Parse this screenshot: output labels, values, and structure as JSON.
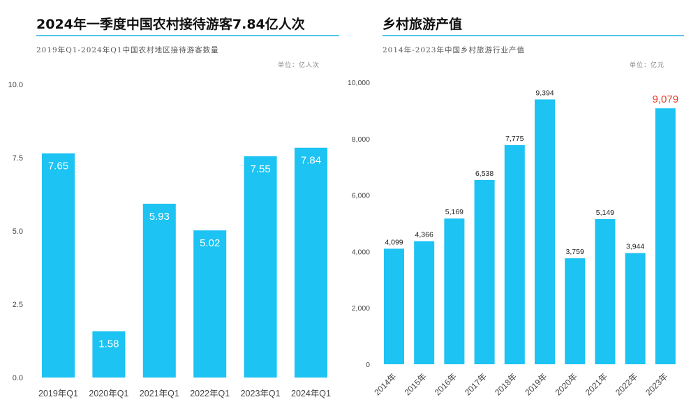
{
  "charts": [
    {
      "title": "2024年一季度中国农村接待游客7.84亿人次",
      "subtitle": "2019年Q1-2024年Q1中国农村地区接待游客数量",
      "unit": "单位：亿人次"
    },
    {
      "title": "乡村旅游产值",
      "subtitle": "2014年-2023年中国乡村旅游行业产值",
      "unit": "单位：亿元"
    }
  ],
  "chart_data": [
    {
      "type": "bar",
      "categories": [
        "2019年Q1",
        "2020年Q1",
        "2021年Q1",
        "2022年Q1",
        "2023年Q1",
        "2024年Q1"
      ],
      "values": [
        7.65,
        1.58,
        5.93,
        5.02,
        7.55,
        7.84
      ],
      "value_labels": [
        "7.65",
        "1.58",
        "5.93",
        "5.02",
        "7.55",
        "7.84"
      ],
      "ylim": [
        0,
        10
      ],
      "yticks": [
        "0.0",
        "2.5",
        "5.0",
        "7.5",
        "10.0"
      ],
      "ytick_values": [
        0,
        2.5,
        5,
        7.5,
        10
      ],
      "grid": false,
      "label_position": "inside-top",
      "bar_color": "#1cc3f3"
    },
    {
      "type": "bar",
      "categories": [
        "2014年",
        "2015年",
        "2016年",
        "2017年",
        "2018年",
        "2019年",
        "2020年",
        "2021年",
        "2022年",
        "2023年"
      ],
      "values": [
        4099,
        4366,
        5169,
        6538,
        7775,
        9394,
        3759,
        5149,
        3944,
        9079
      ],
      "value_labels": [
        "4,099",
        "4,366",
        "5,169",
        "6,538",
        "7,775",
        "9,394",
        "3,759",
        "5,149",
        "3,944",
        "9,079"
      ],
      "ylim": [
        0,
        10000
      ],
      "yticks": [
        "0",
        "2,000",
        "4,000",
        "6,000",
        "8,000",
        "10,000"
      ],
      "ytick_values": [
        0,
        2000,
        4000,
        6000,
        8000,
        10000
      ],
      "grid": false,
      "label_position": "above",
      "highlight_index": 9,
      "highlight_color": "#e8412c",
      "bar_color": "#1cc3f3"
    }
  ]
}
